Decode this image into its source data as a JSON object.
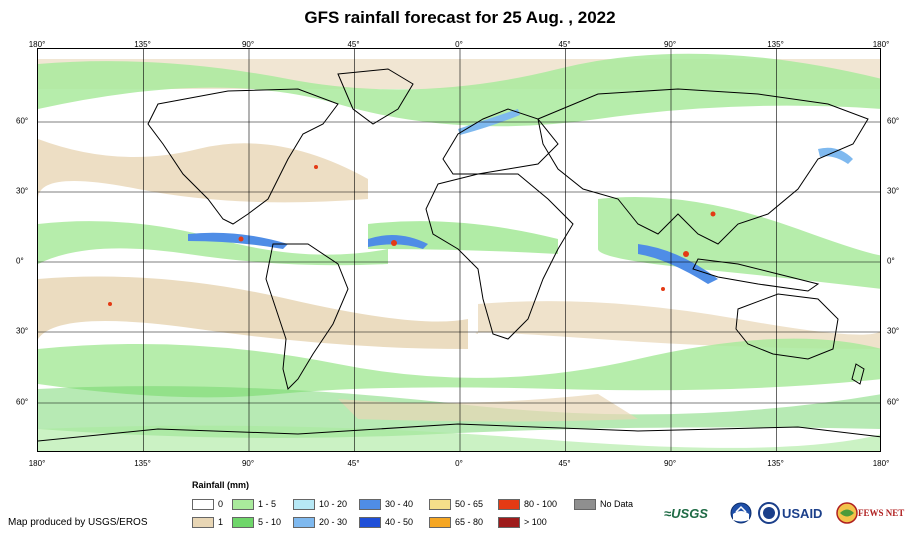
{
  "title": "GFS rainfall forecast for 25 Aug. , 2022",
  "lon_ticks": [
    "180°",
    "135°",
    "90°",
    "45°",
    "0°",
    "45°",
    "90°",
    "135°",
    "180°"
  ],
  "lat_ticks": [
    "60°",
    "30°",
    "0°",
    "30°",
    "60°"
  ],
  "legend": {
    "title": "Rainfall (mm)",
    "items": [
      {
        "label": "0",
        "color": "#ffffff"
      },
      {
        "label": "1",
        "color": "#e8d6b5"
      },
      {
        "label": "1 - 5",
        "color": "#a9ea9c"
      },
      {
        "label": "5 - 10",
        "color": "#6fd66a"
      },
      {
        "label": "10 - 20",
        "color": "#b7e8f5"
      },
      {
        "label": "20 - 30",
        "color": "#7fb9ef"
      },
      {
        "label": "30 - 40",
        "color": "#4f8de6"
      },
      {
        "label": "40 - 50",
        "color": "#1f4fd8"
      },
      {
        "label": "50 - 65",
        "color": "#f5df8a"
      },
      {
        "label": "65 - 80",
        "color": "#f5a623"
      },
      {
        "label": "80 - 100",
        "color": "#e43a14"
      },
      {
        "label": "> 100",
        "color": "#9e1b1b"
      },
      {
        "label": "No Data",
        "color": "#8f8f8f"
      }
    ]
  },
  "credit": "Map produced by USGS/EROS",
  "logos": {
    "usgs": "≈USGS",
    "usaid": "USAID",
    "fews": "FEWS NET"
  }
}
